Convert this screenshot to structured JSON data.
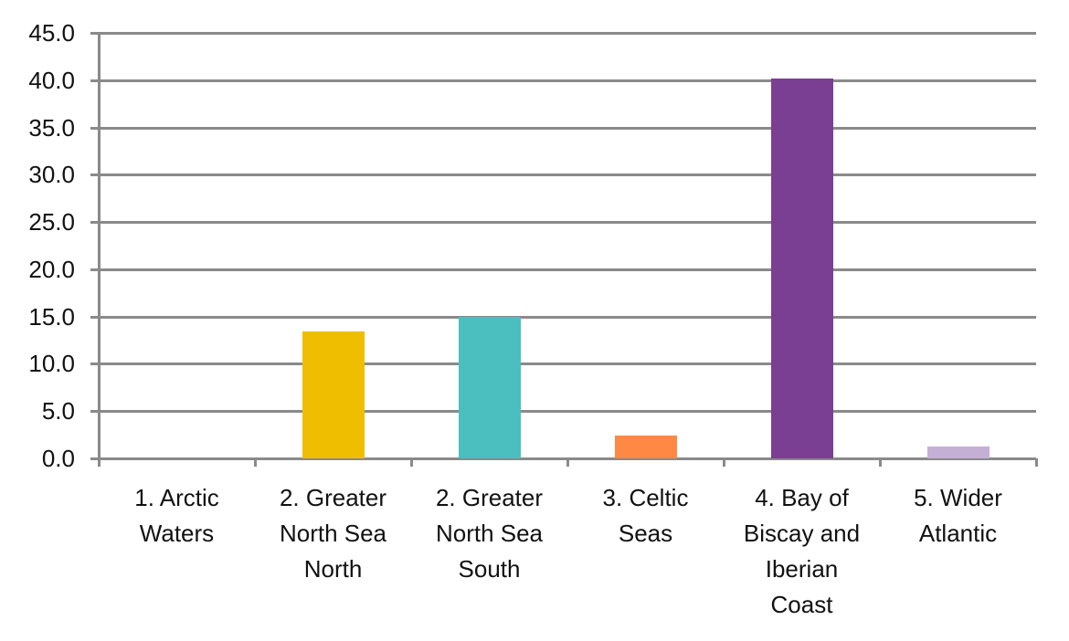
{
  "chart_data": {
    "type": "bar",
    "title": "",
    "xlabel": "",
    "ylabel": "",
    "ylim": [
      0,
      45
    ],
    "yticks": [
      "0.0",
      "5.0",
      "10.0",
      "15.0",
      "20.0",
      "25.0",
      "30.0",
      "35.0",
      "40.0",
      "45.0"
    ],
    "grid": true,
    "legend": null,
    "categories": [
      "1. Arctic Waters",
      "2. Greater North Sea North",
      "2. Greater North Sea South",
      "3. Celtic Seas",
      "4. Bay of Biscay and Iberian Coast",
      "5. Wider Atlantic"
    ],
    "category_label_lines": [
      "1. Arctic\nWaters",
      "2. Greater\nNorth Sea\nNorth",
      "2. Greater\nNorth Sea\nSouth",
      "3. Celtic\nSeas",
      "4. Bay of\nBiscay and\nIberian\nCoast",
      "5. Wider\nAtlantic"
    ],
    "values": [
      0.0,
      13.4,
      15.0,
      2.4,
      40.2,
      1.3
    ],
    "colors": [
      "#4f81bd",
      "#f0be00",
      "#4bbfbf",
      "#ff8844",
      "#7a3f92",
      "#c5b0d5"
    ]
  }
}
